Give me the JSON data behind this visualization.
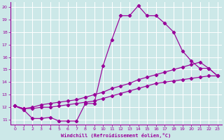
{
  "xlabel": "Windchill (Refroidissement éolien,°C)",
  "bg_color": "#cce8e8",
  "grid_color": "#ffffff",
  "line_color": "#990099",
  "xlim": [
    -0.5,
    23.5
  ],
  "ylim": [
    10.6,
    20.4
  ],
  "xticks": [
    0,
    1,
    2,
    3,
    4,
    5,
    6,
    7,
    8,
    9,
    10,
    11,
    12,
    13,
    14,
    15,
    16,
    17,
    18,
    19,
    20,
    21,
    22,
    23
  ],
  "yticks": [
    11,
    12,
    13,
    14,
    15,
    16,
    17,
    18,
    19,
    20
  ],
  "series1_x": [
    0,
    1,
    2,
    3,
    4,
    5,
    6,
    7,
    8,
    9,
    10,
    11,
    12,
    13,
    14,
    15,
    16,
    17,
    18,
    19,
    20,
    21,
    22,
    23
  ],
  "series1_y": [
    12.1,
    11.8,
    11.1,
    11.1,
    11.2,
    10.9,
    10.9,
    10.9,
    12.3,
    12.3,
    15.3,
    17.4,
    19.3,
    19.3,
    20.1,
    19.3,
    19.3,
    18.7,
    18.0,
    16.5,
    15.7,
    15.1,
    15.1,
    14.5
  ],
  "series2_x": [
    0,
    1,
    2,
    3,
    4,
    5,
    6,
    7,
    8,
    9,
    10,
    11,
    12,
    13,
    14,
    15,
    16,
    17,
    18,
    19,
    20,
    21,
    22,
    23
  ],
  "series2_y": [
    12.1,
    11.9,
    12.0,
    12.2,
    12.3,
    12.4,
    12.5,
    12.6,
    12.8,
    13.0,
    13.2,
    13.5,
    13.7,
    13.9,
    14.2,
    14.4,
    14.6,
    14.8,
    15.0,
    15.2,
    15.4,
    15.6,
    15.1,
    14.5
  ],
  "series3_x": [
    0,
    1,
    2,
    3,
    4,
    5,
    6,
    7,
    8,
    9,
    10,
    11,
    12,
    13,
    14,
    15,
    16,
    17,
    18,
    19,
    20,
    21,
    22,
    23
  ],
  "series3_y": [
    12.1,
    11.9,
    11.9,
    12.0,
    12.0,
    12.1,
    12.2,
    12.3,
    12.4,
    12.5,
    12.7,
    12.9,
    13.1,
    13.3,
    13.5,
    13.7,
    13.9,
    14.0,
    14.1,
    14.2,
    14.3,
    14.4,
    14.5,
    14.5
  ]
}
